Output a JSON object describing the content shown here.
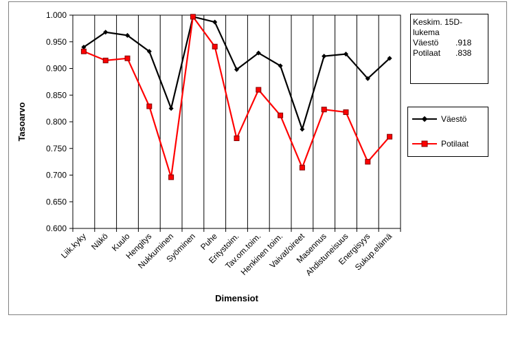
{
  "chart_data": {
    "type": "line",
    "xlabel": "Dimensiot",
    "ylabel": "Tasoarvo",
    "ylim": [
      0.6,
      1.0
    ],
    "y_ticks": [
      "0.600",
      "0.650",
      "0.700",
      "0.750",
      "0.800",
      "0.850",
      "0.900",
      "0.950",
      "1.000"
    ],
    "categories": [
      "Liik.kyky",
      "Näkö",
      "Kuulo",
      "Hengitys",
      "Nukkuminen",
      "Syöminen",
      "Puhe",
      "Eritystoim.",
      "Tav.om.toim.",
      "Henkinen toim.",
      "Vaivat/oireet",
      "Masennus",
      "Ahdistuneisuus",
      "Energisyys",
      "Sukup.elämä"
    ],
    "series": [
      {
        "name": "Väestö",
        "color": "#000000",
        "marker": "diamond",
        "values": [
          0.94,
          0.968,
          0.962,
          0.932,
          0.825,
          0.997,
          0.987,
          0.898,
          0.929,
          0.905,
          0.786,
          0.923,
          0.927,
          0.881,
          0.919
        ]
      },
      {
        "name": "Potilaat",
        "color": "#ff0000",
        "marker": "square",
        "values": [
          0.932,
          0.915,
          0.919,
          0.829,
          0.696,
          0.997,
          0.941,
          0.769,
          0.86,
          0.812,
          0.714,
          0.823,
          0.818,
          0.725,
          0.772
        ]
      }
    ],
    "grid": "vertical",
    "legend": "right"
  },
  "infobox": {
    "title_line1": "Keskim. 15D-",
    "title_line2": "lukema",
    "rows": [
      {
        "label": "Väestö",
        "value": ".918"
      },
      {
        "label": "Potilaat",
        "value": ".838"
      }
    ]
  }
}
